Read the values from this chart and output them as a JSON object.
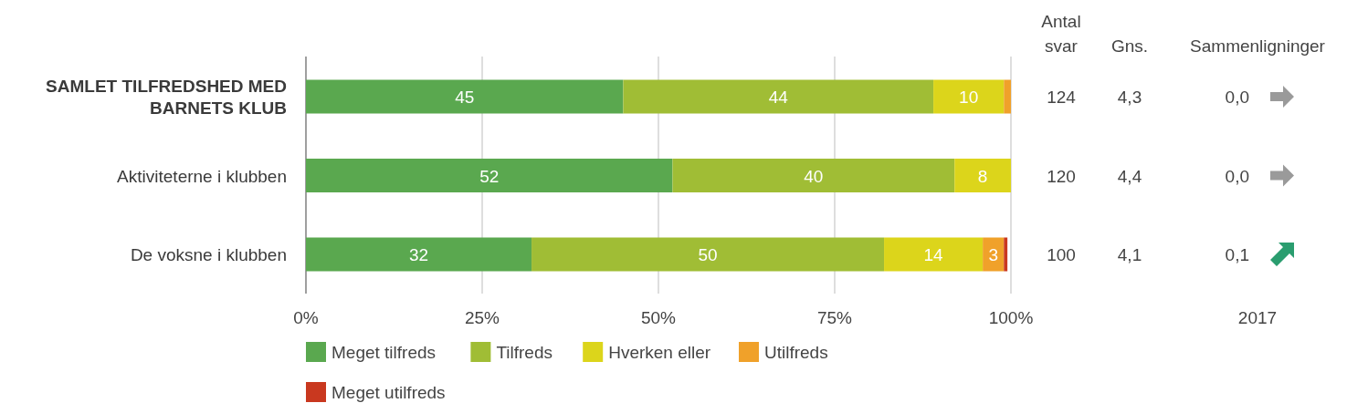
{
  "chart_data": {
    "type": "bar",
    "orientation": "horizontal",
    "stacked": true,
    "categories": [
      "SAMLET TILFREDSHED MED BARNETS KLUB",
      "Aktiviteterne i klubben",
      "De voksne i klubben"
    ],
    "series": [
      {
        "name": "Meget tilfreds",
        "color": "#5aa84f",
        "values": [
          45,
          52,
          32
        ],
        "value_labels": [
          "45",
          "52",
          "32"
        ]
      },
      {
        "name": "Tilfreds",
        "color": "#a0bd35",
        "values": [
          44,
          40,
          50
        ],
        "value_labels": [
          "44",
          "40",
          "50"
        ]
      },
      {
        "name": "Hverken eller",
        "color": "#dcd51b",
        "values": [
          10,
          8,
          14
        ],
        "value_labels": [
          "10",
          "8",
          "14"
        ]
      },
      {
        "name": "Utilfreds",
        "color": "#f0a12a",
        "values": [
          1,
          0,
          3
        ],
        "value_labels": [
          null,
          null,
          "3"
        ]
      },
      {
        "name": "Meget utilfreds",
        "color": "#c9381f",
        "values": [
          0,
          0,
          0.5
        ],
        "value_labels": [
          null,
          null,
          null
        ]
      }
    ],
    "xlim": [
      0,
      100
    ],
    "xticks": [
      {
        "value": 0,
        "label": "0%"
      },
      {
        "value": 25,
        "label": "25%"
      },
      {
        "value": 50,
        "label": "50%"
      },
      {
        "value": 75,
        "label": "75%"
      },
      {
        "value": 100,
        "label": "100%"
      }
    ],
    "grid": "x",
    "legend": "bottom",
    "annotations": [
      "Antal svar",
      "Gns.",
      "Sammenligninger",
      "124",
      "4,3",
      "0,0",
      "120",
      "4,4",
      "0,0",
      "100",
      "4,1",
      "0,1",
      "2017"
    ]
  }
}
